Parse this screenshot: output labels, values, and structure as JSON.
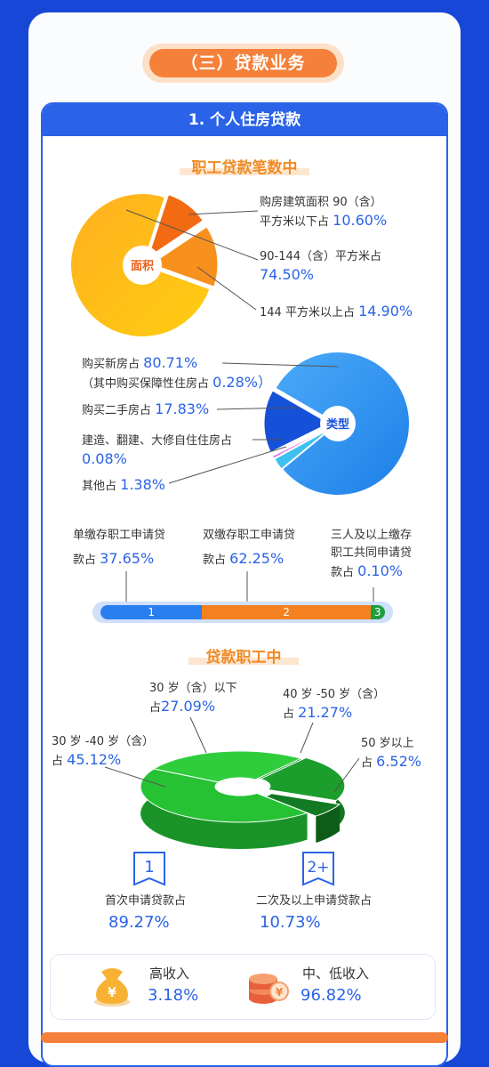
{
  "section_title": "（三）贷款业务",
  "panel_title": "1. 个人住房贷款",
  "colors": {
    "orange": "#f5803a",
    "blue": "#2a63e8",
    "green": "#1fae3a"
  },
  "chart_data": [
    {
      "type": "pie",
      "title": "职工贷款笔数中",
      "center_label": "面积",
      "slices": [
        {
          "label_line1": "购房建筑面积 90（含）",
          "label_line2": "平方米以下占",
          "value": 10.6,
          "display": "10.60%"
        },
        {
          "label_line1": "90-144（含）平方米占",
          "label_line2": "",
          "value": 74.5,
          "display": "74.50%"
        },
        {
          "label_line1": "144 平方米以上占",
          "label_line2": "",
          "value": 14.9,
          "display": "14.90%"
        }
      ]
    },
    {
      "type": "pie",
      "center_label": "类型",
      "slices": [
        {
          "label_line1": "购买新房占",
          "label_line2": "（其中购买保障性住房占",
          "sub_display": "0.28%）",
          "value": 80.71,
          "display": "80.71%"
        },
        {
          "label_line1": "购买二手房占",
          "value": 17.83,
          "display": "17.83%"
        },
        {
          "label_line1": "建造、翻建、大修自住住房占",
          "value": 0.08,
          "display": "0.08%"
        },
        {
          "label_line1": "其他占",
          "value": 1.38,
          "display": "1.38%"
        }
      ]
    },
    {
      "type": "bar",
      "stacked": true,
      "segments": [
        {
          "label_line1": "单缴存职工申请贷",
          "label_line2": "款占",
          "value": 37.65,
          "display": "37.65%",
          "marker": "1"
        },
        {
          "label_line1": "双缴存职工申请贷",
          "label_line2": "款占",
          "value": 62.25,
          "display": "62.25%",
          "marker": "2"
        },
        {
          "label_line1": "三人及以上缴存",
          "label_line2": "职工共同申请贷",
          "label_line3": "款占",
          "value": 0.1,
          "display": "0.10%",
          "marker": "3"
        }
      ]
    },
    {
      "type": "pie",
      "title": "贷款职工中",
      "slices": [
        {
          "label_line1": "30 岁（含）以下",
          "label_line2": "占",
          "value": 27.09,
          "display": "27.09%"
        },
        {
          "label_line1": "40 岁 -50 岁（含）",
          "label_line2": "占",
          "value": 21.27,
          "display": "21.27%"
        },
        {
          "label_line1": "50 岁以上",
          "label_line2": "占",
          "value": 6.52,
          "display": "6.52%"
        },
        {
          "label_line1": "30 岁 -40 岁（含）",
          "label_line2": "占",
          "value": 45.12,
          "display": "45.12%"
        }
      ]
    }
  ],
  "applications": [
    {
      "icon": "1",
      "label": "首次申请贷款占",
      "display": "89.27%",
      "value": 89.27
    },
    {
      "icon": "2+",
      "label": "二次及以上申请贷款占",
      "display": "10.73%",
      "value": 10.73
    }
  ],
  "income": [
    {
      "label": "高收入",
      "display": "3.18%",
      "value": 3.18,
      "icon": "money-bag-icon"
    },
    {
      "label": "中、低收入",
      "display": "96.82%",
      "value": 96.82,
      "icon": "coin-stack-icon"
    }
  ]
}
